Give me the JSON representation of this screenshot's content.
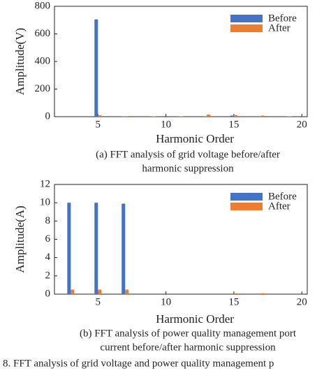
{
  "figure_caption": "8. FFT analysis of grid voltage and power quality management p",
  "chart_data": [
    {
      "type": "bar",
      "x_label": "Harmonic Order",
      "y_label": "Amplitude(V)",
      "caption": [
        "(a) FFT analysis of grid voltage before/after",
        "harmonic suppression"
      ],
      "x": [
        5,
        7,
        9,
        11,
        13,
        15,
        17,
        19
      ],
      "series": [
        {
          "name": "Before",
          "color": "#4472c4",
          "values": [
            705,
            2,
            1,
            1,
            2,
            8,
            1,
            1
          ]
        },
        {
          "name": "After",
          "color": "#ed7d31",
          "values": [
            10,
            4,
            2,
            3,
            15,
            12,
            8,
            2
          ]
        }
      ],
      "xlim": [
        1.8,
        20.4
      ],
      "xticks": [
        5,
        10,
        15,
        20
      ],
      "ylim": [
        0,
        800
      ],
      "yticks": [
        0,
        200,
        400,
        600,
        800
      ],
      "legend": "upper right"
    },
    {
      "type": "bar",
      "x_label": "Harmonic Order",
      "y_label": "Amplitude(A)",
      "caption": [
        "(b) FFT analysis of power quality management port",
        "current before/after harmonic suppression"
      ],
      "x": [
        3,
        5,
        7,
        15,
        17
      ],
      "series": [
        {
          "name": "Before",
          "color": "#4472c4",
          "values": [
            10,
            10,
            9.9,
            0,
            0
          ]
        },
        {
          "name": "After",
          "color": "#ed7d31",
          "values": [
            0.5,
            0.5,
            0.5,
            0.1,
            0.1
          ]
        }
      ],
      "xlim": [
        1.8,
        20.4
      ],
      "xticks": [
        5,
        10,
        15,
        20
      ],
      "ylim": [
        0,
        12
      ],
      "yticks": [
        0,
        2,
        4,
        6,
        8,
        10,
        12
      ],
      "legend": "upper right"
    }
  ]
}
